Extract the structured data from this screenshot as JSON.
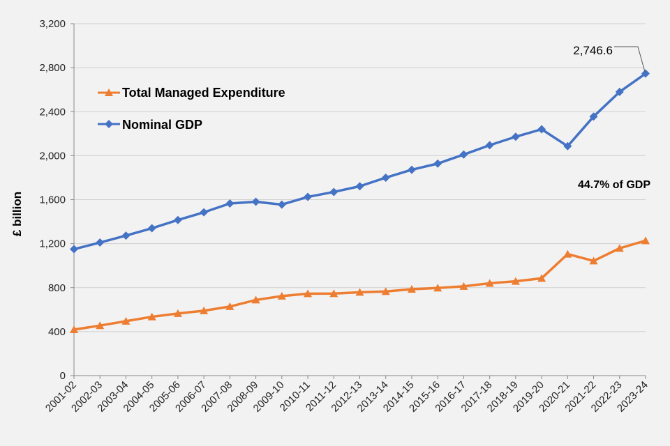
{
  "chart_data": {
    "type": "line",
    "title": "",
    "xlabel": "",
    "ylabel": "£ billion",
    "ylim": [
      0,
      3200
    ],
    "y_ticks": [
      0,
      400,
      800,
      1200,
      1600,
      2000,
      2400,
      2800,
      3200
    ],
    "y_tick_labels": [
      "0",
      "400",
      "800",
      "1,200",
      "1,600",
      "2,000",
      "2,400",
      "2,800",
      "3,200"
    ],
    "grid": true,
    "legend_position": "top-left",
    "categories": [
      "2001-02",
      "2002-03",
      "2003-04",
      "2004-05",
      "2005-06",
      "2006-07",
      "2007-08",
      "2008-09",
      "2009-10",
      "2010-11",
      "2011-12",
      "2012-13",
      "2013-14",
      "2014-15",
      "2015-16",
      "2016-17",
      "2017-18",
      "2018-19",
      "2019-20",
      "2020-21",
      "2021-22",
      "2022-23",
      "2023-24"
    ],
    "series": [
      {
        "name": "Total Managed Expenditure",
        "color": "#ED7D31",
        "marker": "triangle",
        "values": [
          418,
          455,
          495,
          535,
          565,
          590,
          628,
          688,
          723,
          745,
          746,
          758,
          765,
          786,
          797,
          812,
          840,
          858,
          885,
          1105,
          1043,
          1158,
          1227
        ]
      },
      {
        "name": "Nominal GDP",
        "color": "#4472C4",
        "marker": "diamond",
        "values": [
          1150,
          1210,
          1273,
          1340,
          1415,
          1485,
          1565,
          1581,
          1555,
          1625,
          1670,
          1722,
          1800,
          1872,
          1928,
          2010,
          2095,
          2172,
          2240,
          2086,
          2356,
          2580,
          2746.6
        ]
      }
    ],
    "annotations": {
      "gdp_last_value": "2,746.6",
      "tme_share": "44.7% of GDP"
    }
  }
}
